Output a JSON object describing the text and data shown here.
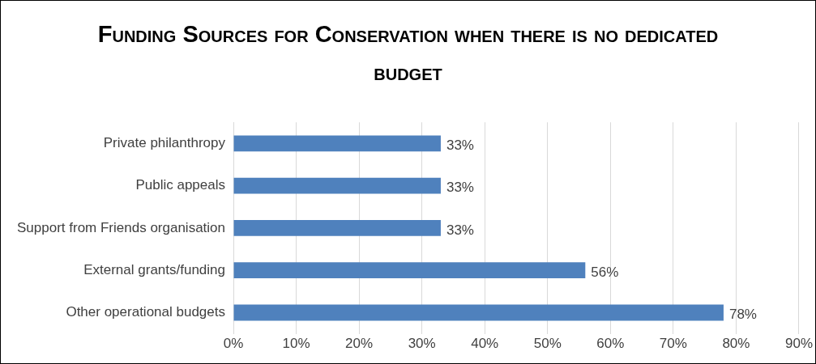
{
  "chart_data": {
    "type": "bar",
    "orientation": "horizontal",
    "title": "Funding Sources for Conservation when there is no dedicated budget",
    "categories": [
      "Private philanthropy",
      "Public appeals",
      "Support from Friends organisation",
      "External grants/funding",
      "Other operational budgets"
    ],
    "values": [
      33,
      33,
      33,
      56,
      78
    ],
    "value_labels": [
      "33%",
      "33%",
      "33%",
      "56%",
      "78%"
    ],
    "color": "#4f81bd",
    "xlim": [
      0,
      90
    ],
    "xticks": [
      {
        "value": 0,
        "label": "0%"
      },
      {
        "value": 10,
        "label": "10%"
      },
      {
        "value": 20,
        "label": "20%"
      },
      {
        "value": 30,
        "label": "30%"
      },
      {
        "value": 40,
        "label": "40%"
      },
      {
        "value": 50,
        "label": "50%"
      },
      {
        "value": 60,
        "label": "60%"
      },
      {
        "value": 70,
        "label": "70%"
      },
      {
        "value": 80,
        "label": "80%"
      },
      {
        "value": 90,
        "label": "90%"
      }
    ],
    "grid": "x",
    "legend": false
  }
}
